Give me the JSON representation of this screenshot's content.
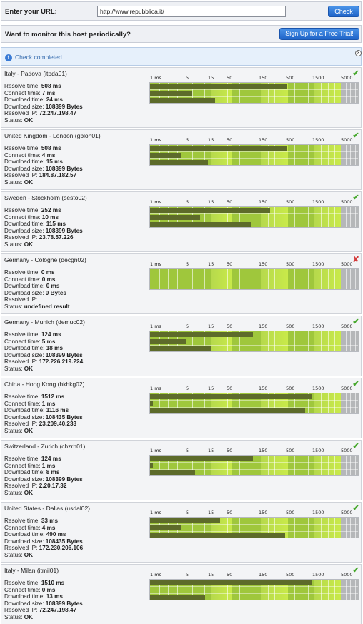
{
  "url_bar": {
    "label": "Enter your URL:",
    "url_value": "http://www.repubblica.it/",
    "check_label": "Check"
  },
  "promo": {
    "text": "Want to monitor this host periodically?",
    "signup_label": "Sign Up for a Free Trial!"
  },
  "notice": {
    "info_glyph": "i",
    "message": "Check completed.",
    "close_glyph": "×"
  },
  "scale_ticks": [
    "1 ms",
    "5",
    "15",
    "50",
    "150",
    "500",
    "1500",
    "5000"
  ],
  "colors": {
    "ok": "#46a82c",
    "fail": "#d43a3a",
    "measure_bar": "#5d6b2a",
    "zone_green": "#9fc73c",
    "zone_gray": "#b5b7b9"
  },
  "field_labels": {
    "resolve": "Resolve time: ",
    "connect": "Connect time: ",
    "download": "Download time: ",
    "size": "Download size: ",
    "ip": "Resolved IP: ",
    "status": "Status: "
  },
  "locations": [
    {
      "name": "Italy - Padova (itpda01)",
      "resolve": "508 ms",
      "connect": "7 ms",
      "download": "24 ms",
      "size": "108399 Bytes",
      "ip": "72.247.198.47",
      "status": "OK",
      "ok": true,
      "status_icon": "check-icon",
      "glyph": "✔",
      "bars_ms": [
        508,
        7,
        24
      ]
    },
    {
      "name": "United Kingdom - London (gblon01)",
      "resolve": "508 ms",
      "connect": "4 ms",
      "download": "15 ms",
      "size": "108399 Bytes",
      "ip": "184.87.182.57",
      "status": "OK",
      "ok": true,
      "status_icon": "check-icon",
      "glyph": "✔",
      "bars_ms": [
        508,
        4,
        15
      ]
    },
    {
      "name": "Sweden - Stockholm (sesto02)",
      "resolve": "252 ms",
      "connect": "10 ms",
      "download": "115 ms",
      "size": "108399 Bytes",
      "ip": "23.78.57.226",
      "status": "OK",
      "ok": true,
      "status_icon": "check-icon",
      "glyph": "✔",
      "bars_ms": [
        252,
        10,
        115
      ]
    },
    {
      "name": "Germany - Cologne (decgn02)",
      "resolve": "0 ms",
      "connect": "0 ms",
      "download": "0 ms",
      "size": "0 Bytes",
      "ip": "",
      "status": "undefined result",
      "ok": false,
      "status_icon": "cross-icon",
      "glyph": "✘",
      "bars_ms": [
        0,
        0,
        0
      ]
    },
    {
      "name": "Germany - Munich (demuc02)",
      "resolve": "124 ms",
      "connect": "5 ms",
      "download": "18 ms",
      "size": "108399 Bytes",
      "ip": "172.226.219.224",
      "status": "OK",
      "ok": true,
      "status_icon": "check-icon",
      "glyph": "✔",
      "bars_ms": [
        124,
        5,
        18
      ]
    },
    {
      "name": "China - Hong Kong (hkhkg02)",
      "resolve": "1512 ms",
      "connect": "1 ms",
      "download": "1116 ms",
      "size": "108435 Bytes",
      "ip": "23.209.40.233",
      "status": "OK",
      "ok": true,
      "status_icon": "check-icon",
      "glyph": "✔",
      "bars_ms": [
        1512,
        1,
        1116
      ]
    },
    {
      "name": "Switzerland - Zurich (chzrh01)",
      "resolve": "124 ms",
      "connect": "1 ms",
      "download": "8 ms",
      "size": "108399 Bytes",
      "ip": "2.20.17.32",
      "status": "OK",
      "ok": true,
      "status_icon": "check-icon",
      "glyph": "✔",
      "bars_ms": [
        124,
        1,
        8
      ]
    },
    {
      "name": "United States - Dallas (usdal02)",
      "resolve": "33 ms",
      "connect": "4 ms",
      "download": "490 ms",
      "size": "108435 Bytes",
      "ip": "172.230.206.106",
      "status": "OK",
      "ok": true,
      "status_icon": "check-icon",
      "glyph": "✔",
      "bars_ms": [
        33,
        4,
        490
      ]
    },
    {
      "name": "Italy - Milan (itmil01)",
      "resolve": "1510 ms",
      "connect": "0 ms",
      "download": "13 ms",
      "size": "108399 Bytes",
      "ip": "72.247.198.47",
      "status": "OK",
      "ok": true,
      "status_icon": "check-icon",
      "glyph": "✔",
      "bars_ms": [
        1510,
        0,
        13
      ]
    }
  ]
}
